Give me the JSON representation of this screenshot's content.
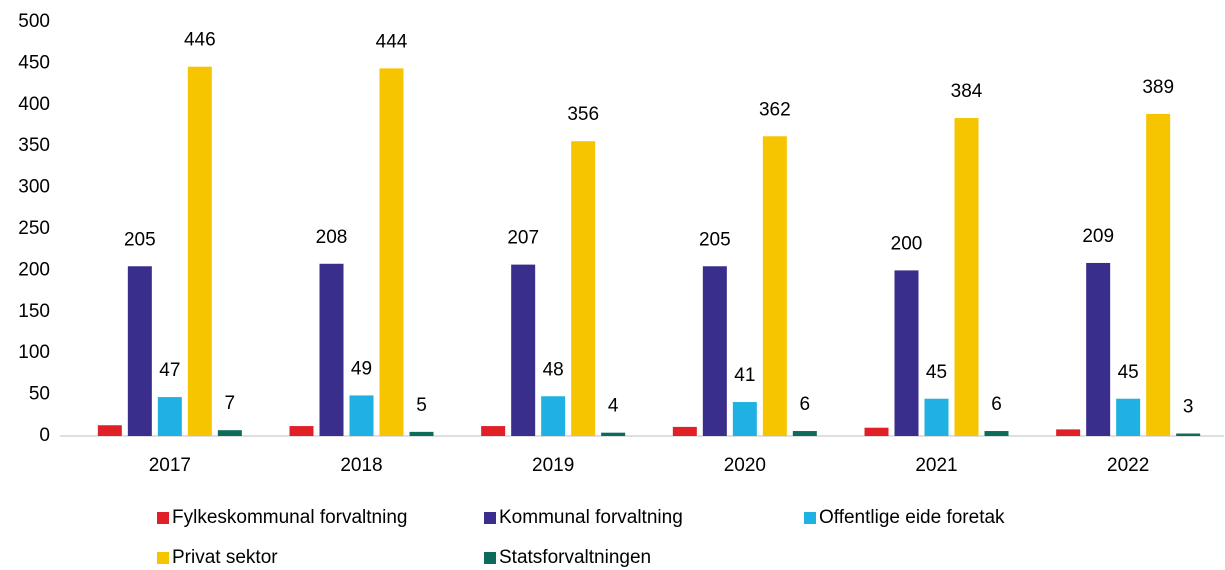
{
  "chart_data": {
    "type": "bar",
    "categories": [
      "2017",
      "2018",
      "2019",
      "2020",
      "2021",
      "2022"
    ],
    "series": [
      {
        "name": "Fylkeskommunal forvaltning",
        "color": "#e02026",
        "values": [
          13,
          12,
          12,
          11,
          10,
          8
        ],
        "data_labels": false
      },
      {
        "name": "Kommunal forvaltning",
        "color": "#3a2e8c",
        "values": [
          205,
          208,
          207,
          205,
          200,
          209
        ],
        "data_labels": true
      },
      {
        "name": "Offentlige eide foretak",
        "color": "#1eb1e2",
        "values": [
          47,
          49,
          48,
          41,
          45,
          45
        ],
        "data_labels": true
      },
      {
        "name": "Privat sektor",
        "color": "#f6c500",
        "values": [
          446,
          444,
          356,
          362,
          384,
          389
        ],
        "data_labels": true
      },
      {
        "name": "Statsforvaltningen",
        "color": "#0d6b5c",
        "values": [
          7,
          5,
          4,
          6,
          6,
          3
        ],
        "data_labels": true
      }
    ],
    "ylim": [
      0,
      500
    ],
    "yticks": [
      0,
      50,
      100,
      150,
      200,
      250,
      300,
      350,
      400,
      450,
      500
    ],
    "grid": false,
    "legend": "bottom"
  }
}
